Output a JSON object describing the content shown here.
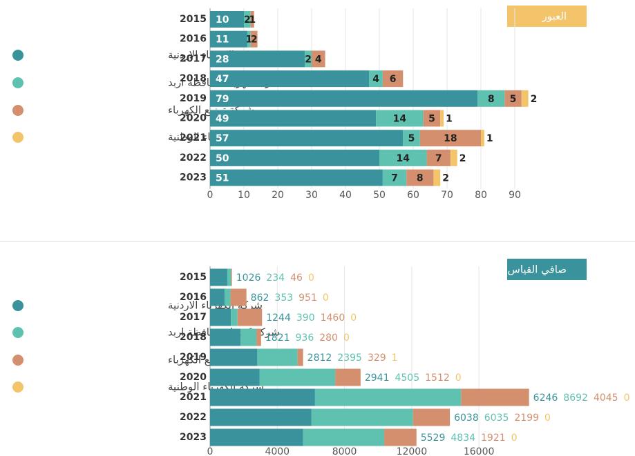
{
  "chart_data": [
    {
      "type": "bar",
      "orientation": "horizontal",
      "stacked": true,
      "title": "العبور",
      "categories": [
        "2015",
        "2016",
        "2017",
        "2018",
        "2019",
        "2020",
        "2021",
        "2022",
        "2023"
      ],
      "series": [
        {
          "name": "شركة الكهرباء الاردنية",
          "color": "#3a939c",
          "values": [
            10,
            11,
            28,
            47,
            79,
            49,
            57,
            50,
            51
          ]
        },
        {
          "name": "شركة كهرباء محافظة اربد",
          "color": "#5fc1b0",
          "values": [
            2,
            1,
            2,
            4,
            8,
            14,
            5,
            14,
            7
          ]
        },
        {
          "name": "شركة توزيع الكهرباء",
          "color": "#d4906e",
          "values": [
            1,
            2,
            4,
            6,
            5,
            5,
            18,
            7,
            8
          ]
        },
        {
          "name": "شركة الكهرباء الوطنية",
          "color": "#f3c46a",
          "values": [
            null,
            null,
            null,
            null,
            2,
            1,
            1,
            2,
            2
          ]
        }
      ],
      "xlim": [
        0,
        100
      ],
      "xticks": [
        0,
        10,
        20,
        30,
        40,
        50,
        60,
        70,
        80,
        90
      ],
      "grid": true,
      "title_color": "#f3c46a"
    },
    {
      "type": "bar",
      "orientation": "horizontal",
      "stacked": true,
      "title": "صافي القياس",
      "categories": [
        "2015",
        "2016",
        "2017",
        "2018",
        "2019",
        "2020",
        "2021",
        "2022",
        "2023"
      ],
      "series": [
        {
          "name": "شركة الكهرباء الاردنية",
          "color": "#3a939c",
          "values": [
            1026,
            862,
            1244,
            1821,
            2812,
            2941,
            6246,
            6038,
            5529
          ]
        },
        {
          "name": "شركة كهرباء محافظة اربد",
          "color": "#5fc1b0",
          "values": [
            234,
            353,
            390,
            936,
            2395,
            4505,
            8692,
            6035,
            4834
          ]
        },
        {
          "name": "شركة توزيع الكهرباء",
          "color": "#d4906e",
          "values": [
            46,
            951,
            1460,
            280,
            329,
            1512,
            4045,
            2199,
            1921
          ]
        },
        {
          "name": "شركة الكهرباء الوطنية",
          "color": "#f3c46a",
          "values": [
            0,
            0,
            0,
            0,
            1,
            0,
            0,
            0,
            0
          ]
        }
      ],
      "xlim": [
        0,
        25000
      ],
      "xticks": [
        0,
        4000,
        8000,
        12000,
        16000
      ],
      "grid": true,
      "title_color": "#3a939c",
      "value_labels_outside": true
    }
  ]
}
